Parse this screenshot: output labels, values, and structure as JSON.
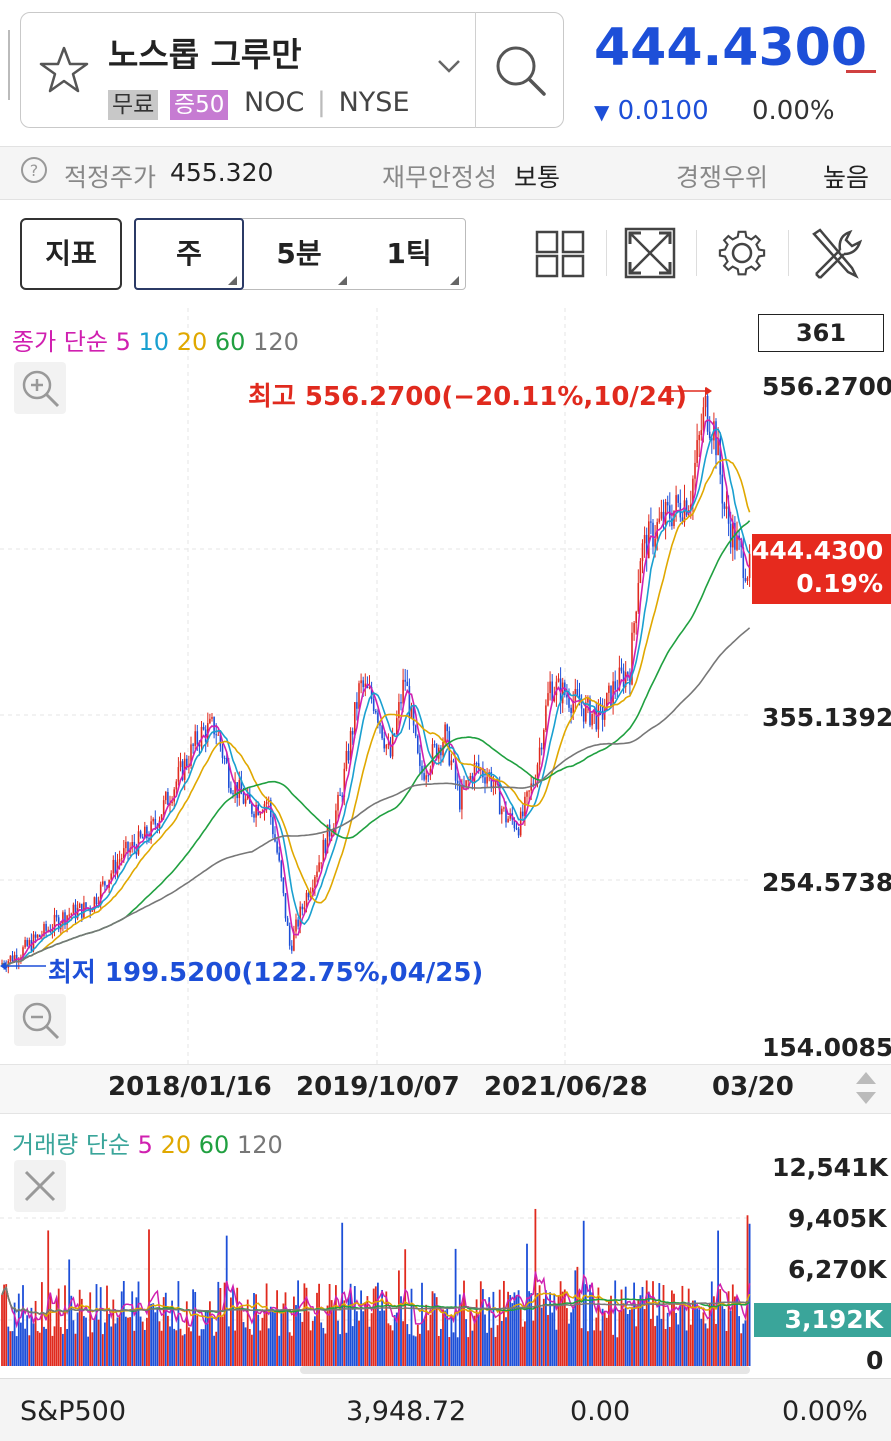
{
  "header": {
    "stock_name": "노스롭 그루만",
    "badge_free": "무료",
    "badge_margin": "증50",
    "ticker": "NOC",
    "exchange": "NYSE",
    "price": "444.4300",
    "change": "0.0100",
    "change_pct": "0.00%",
    "icons": [
      "star-icon",
      "chevron-down-icon",
      "search-icon"
    ]
  },
  "info": {
    "help_glyph": "?",
    "fair_price_label": "적정주가",
    "fair_price_value": "455.320",
    "stability_label": "재무안정성",
    "stability_value": "보통",
    "competitive_label": "경쟁우위",
    "competitive_value": "높음"
  },
  "toolbar": {
    "indicator_label": "지표",
    "period_week": "주",
    "period_5min": "5분",
    "period_tick": "1틱",
    "icons": [
      "grid-layout-icon",
      "fullscreen-icon",
      "settings-icon",
      "tools-icon"
    ]
  },
  "price_chart": {
    "legend_prefix": "종가 단순",
    "ma5": "5",
    "ma10": "10",
    "ma20": "20",
    "ma60": "60",
    "ma120": "120",
    "bar_count": "361",
    "y_ticks": [
      "556.2700",
      "355.1392",
      "254.5738",
      "154.0085"
    ],
    "current_price": "444.4300",
    "current_pct": "0.19%",
    "high_label": "최고 556.2700(−20.11%,10/24)",
    "low_label": "최저 199.5200(122.75%,04/25)",
    "x_ticks": [
      "2018/01/16",
      "2019/10/07",
      "2021/06/28",
      "03/20"
    ]
  },
  "volume_chart": {
    "legend_prefix": "거래량 단순",
    "ma5": "5",
    "ma20": "20",
    "ma60": "60",
    "ma120": "120",
    "y_ticks": [
      "12,541K",
      "9,405K",
      "6,270K",
      "0"
    ],
    "current_volume": "3,192K"
  },
  "bottom_bar": {
    "index_name": "S&P500",
    "index_value": "3,948.72",
    "index_change": "0.00",
    "index_pct": "0.00%"
  },
  "colors": {
    "up": "#e02a1e",
    "down": "#1d4fd8",
    "ma5": "#d020b0",
    "ma10": "#1aa0d0",
    "ma20": "#e0a800",
    "ma60": "#20a040",
    "ma120": "#777777",
    "vol_current": "#3aa59a"
  }
}
